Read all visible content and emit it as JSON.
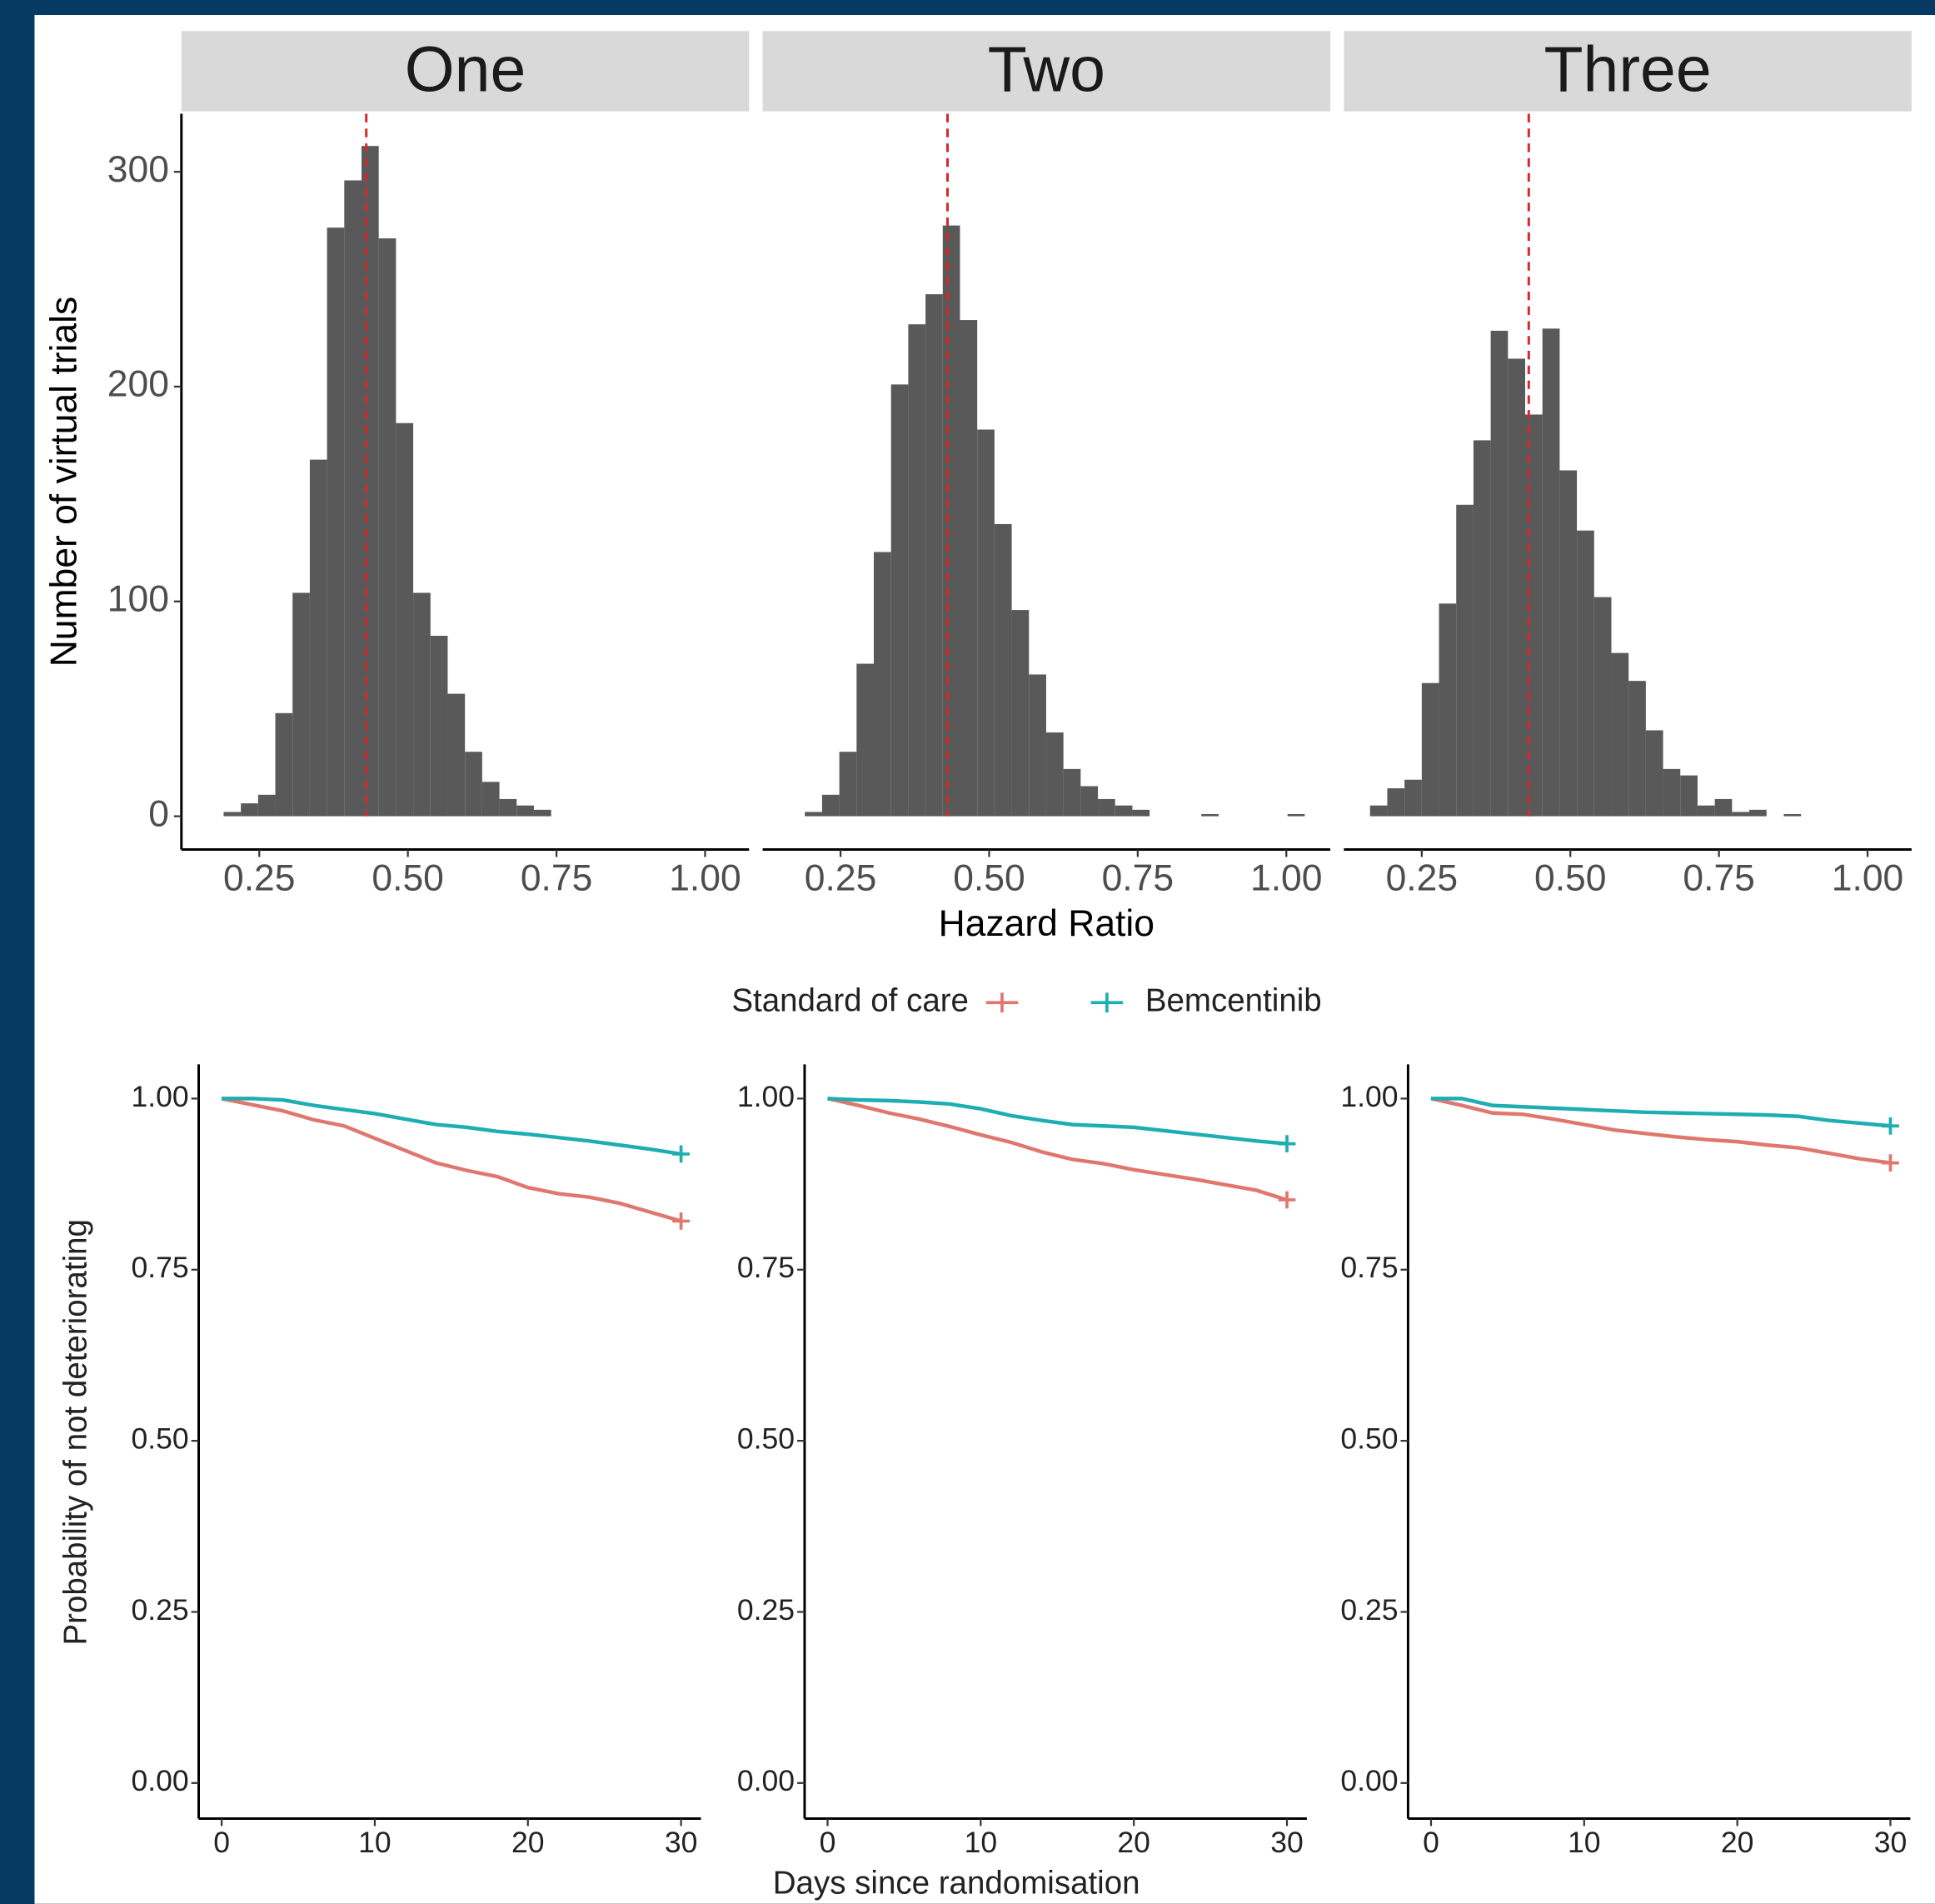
{
  "chart_data": [
    {
      "type": "histogram",
      "title": "One",
      "ylabel": "Number of virtual trials",
      "bins": [
        0.19,
        0.219,
        0.248,
        0.277,
        0.306,
        0.335,
        0.364,
        0.393,
        0.422,
        0.451,
        0.48,
        0.509,
        0.538,
        0.567,
        0.596,
        0.625,
        0.654,
        0.683,
        0.712,
        0.741
      ],
      "values": [
        2,
        6,
        10,
        48,
        104,
        166,
        274,
        296,
        312,
        269,
        183,
        104,
        84,
        57,
        30,
        16,
        8,
        5,
        3
      ],
      "color": "#595959",
      "vline": 0.43,
      "vline_color": "#d62728",
      "xlim": [
        0.119,
        1.074
      ],
      "ylim": [
        -15.5,
        327
      ],
      "xticks": [
        0.25,
        {
          "value": 0.5,
          "label": "0.50"
        },
        0.75,
        {
          "value": 1,
          "label": "1.00"
        }
      ],
      "yticks": [
        0,
        100,
        200,
        300
      ]
    },
    {
      "type": "histogram",
      "title": "Two",
      "xlabel": "Hazard Ratio",
      "bins": [
        0.19,
        0.219,
        0.248,
        0.277,
        0.306,
        0.335,
        0.364,
        0.393,
        0.422,
        0.451,
        0.48,
        0.509,
        0.538,
        0.567,
        0.596,
        0.625,
        0.654,
        0.683,
        0.712,
        0.741,
        0.77,
        0.799,
        0.828,
        0.857,
        0.886,
        0.915,
        0.944,
        0.973,
        1.002,
        1.031
      ],
      "values": [
        2,
        10,
        30,
        71,
        123,
        201,
        229,
        243,
        275,
        231,
        180,
        136,
        96,
        66,
        39,
        22,
        14,
        8,
        5,
        3,
        0,
        0,
        0,
        1,
        0,
        0,
        0,
        0,
        1
      ],
      "color": "#595959",
      "vline": 0.43,
      "vline_color": "#d62728",
      "xlim": [
        0.119,
        1.074
      ],
      "ylim": [
        -15.5,
        327
      ],
      "xticks": [
        0.25,
        {
          "value": 0.5,
          "label": "0.50"
        },
        0.75,
        {
          "value": 1,
          "label": "1.00"
        }
      ],
      "yticks": [
        0,
        100,
        200,
        300
      ]
    },
    {
      "type": "histogram",
      "title": "Three",
      "bins": [
        0.163,
        0.192,
        0.221,
        0.25,
        0.279,
        0.308,
        0.337,
        0.366,
        0.395,
        0.424,
        0.453,
        0.482,
        0.511,
        0.54,
        0.569,
        0.598,
        0.627,
        0.656,
        0.685,
        0.714,
        0.743,
        0.772,
        0.801,
        0.83,
        0.859,
        0.888
      ],
      "values": [
        5,
        13,
        17,
        62,
        99,
        145,
        175,
        226,
        213,
        187,
        227,
        161,
        133,
        102,
        76,
        63,
        40,
        22,
        19,
        5,
        8,
        2,
        3,
        0,
        1
      ],
      "color": "#595959",
      "vline": 0.43,
      "vline_color": "#d62728",
      "xlim": [
        0.119,
        1.074
      ],
      "ylim": [
        -15.5,
        327
      ],
      "xticks": [
        0.25,
        {
          "value": 0.5,
          "label": "0.50"
        },
        0.75,
        {
          "value": 1,
          "label": "1.00"
        }
      ],
      "yticks": [
        0,
        100,
        200,
        300
      ]
    },
    {
      "type": "line",
      "ylabel": "Probability of not deteriorating",
      "x": [
        0,
        2,
        4,
        6,
        8,
        10,
        12,
        14,
        16,
        18,
        20,
        22,
        24,
        26,
        28,
        30
      ],
      "series": [
        {
          "name": "Standard of care",
          "color": "#e0776f",
          "values": [
            1.0,
            0.991,
            0.982,
            0.969,
            0.96,
            0.942,
            0.924,
            0.906,
            0.895,
            0.886,
            0.87,
            0.861,
            0.856,
            0.847,
            0.834,
            0.821
          ]
        },
        {
          "name": "Bemcentinib",
          "color": "#1eaeb2",
          "values": [
            1.0,
            1.0,
            0.998,
            0.99,
            0.984,
            0.978,
            0.97,
            0.962,
            0.958,
            0.952,
            0.948,
            0.943,
            0.938,
            0.932,
            0.926,
            0.919
          ]
        }
      ],
      "xlim": [
        -1.5,
        31.3
      ],
      "ylim": [
        -0.052,
        1.05
      ],
      "xticks": [
        0,
        10,
        20,
        30
      ],
      "yticks": [
        {
          "value": 0,
          "label": "0.00"
        },
        0.25,
        {
          "value": 0.5,
          "label": "0.50"
        },
        0.75,
        {
          "value": 1,
          "label": "1.00"
        }
      ]
    },
    {
      "type": "line",
      "xlabel": "Days since randomisation",
      "x": [
        0,
        2,
        4,
        6,
        8,
        10,
        12,
        14,
        16,
        18,
        20,
        22,
        24,
        26,
        28,
        30
      ],
      "series": [
        {
          "color": "#e0776f",
          "values": [
            1.0,
            0.99,
            0.979,
            0.97,
            0.959,
            0.947,
            0.936,
            0.922,
            0.911,
            0.905,
            0.896,
            0.889,
            0.882,
            0.874,
            0.866,
            0.852
          ]
        },
        {
          "color": "#1eaeb2",
          "values": [
            1.0,
            0.998,
            0.997,
            0.995,
            0.992,
            0.985,
            0.975,
            0.968,
            0.962,
            0.96,
            0.958,
            0.953,
            0.948,
            0.943,
            0.938,
            0.934
          ]
        }
      ],
      "xlim": [
        -1.5,
        31.3
      ],
      "ylim": [
        -0.052,
        1.05
      ],
      "xticks": [
        0,
        10,
        20,
        30
      ],
      "yticks": [
        {
          "value": 0,
          "label": "0.00"
        },
        0.25,
        {
          "value": 0.5,
          "label": "0.50"
        },
        0.75,
        {
          "value": 1,
          "label": "1.00"
        }
      ]
    },
    {
      "type": "line",
      "x": [
        0,
        2,
        4,
        6,
        8,
        10,
        12,
        14,
        16,
        18,
        20,
        22,
        24,
        26,
        28,
        30
      ],
      "series": [
        {
          "color": "#e0776f",
          "values": [
            1.0,
            0.99,
            0.979,
            0.977,
            0.97,
            0.962,
            0.954,
            0.949,
            0.944,
            0.94,
            0.937,
            0.932,
            0.928,
            0.92,
            0.912,
            0.906
          ]
        },
        {
          "color": "#1eaeb2",
          "values": [
            1.0,
            1.0,
            0.99,
            0.988,
            0.986,
            0.984,
            0.982,
            0.98,
            0.979,
            0.978,
            0.977,
            0.976,
            0.974,
            0.968,
            0.964,
            0.96
          ]
        }
      ],
      "xlim": [
        -1.5,
        31.3
      ],
      "ylim": [
        -0.052,
        1.05
      ],
      "xticks": [
        0,
        10,
        20,
        30
      ],
      "yticks": [
        {
          "value": 0,
          "label": "0.00"
        },
        0.25,
        {
          "value": 0.5,
          "label": "0.50"
        },
        0.75,
        {
          "value": 1,
          "label": "1.00"
        }
      ]
    }
  ]
}
